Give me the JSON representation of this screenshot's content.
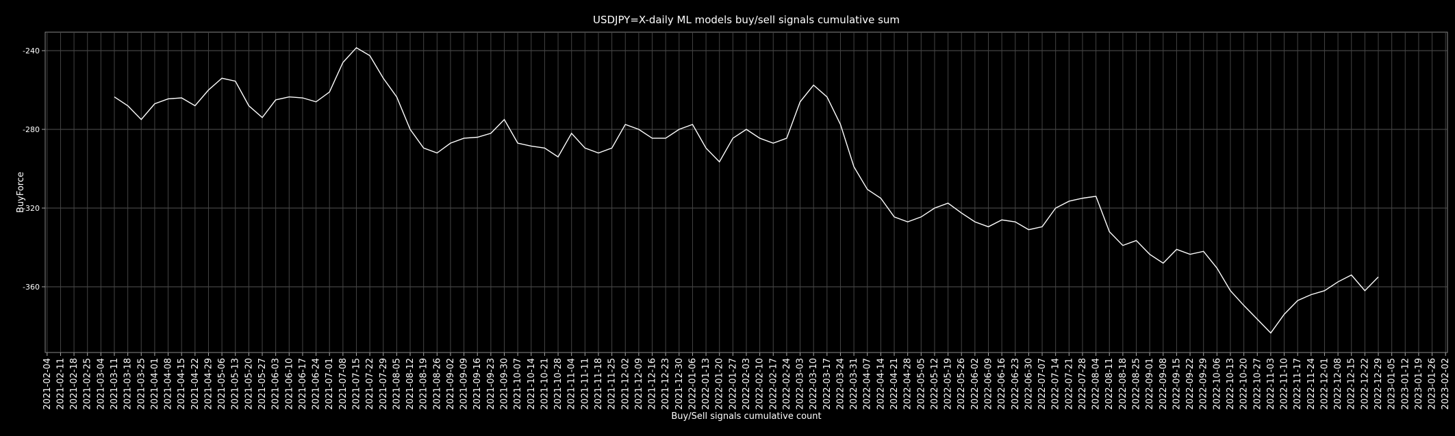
{
  "chart_data": {
    "type": "line",
    "title": "USDJPY=X-daily ML models buy/sell signals cumulative sum",
    "x_label": "Buy/Sell signals cumulative count",
    "y_label": "BuyForce",
    "color": "#ffffff",
    "grid": true,
    "x": [
      "2021-03-11",
      "2021-03-18",
      "2021-03-25",
      "2021-04-01",
      "2021-04-08",
      "2021-04-15",
      "2021-04-22",
      "2021-04-29",
      "2021-05-06",
      "2021-05-13",
      "2021-05-20",
      "2021-05-27",
      "2021-06-03",
      "2021-06-10",
      "2021-06-17",
      "2021-06-24",
      "2021-07-01",
      "2021-07-08",
      "2021-07-15",
      "2021-07-22",
      "2021-07-29",
      "2021-08-05",
      "2021-08-12",
      "2021-08-19",
      "2021-08-26",
      "2021-09-02",
      "2021-09-09",
      "2021-09-16",
      "2021-09-23",
      "2021-09-30",
      "2021-10-07",
      "2021-10-14",
      "2021-10-21",
      "2021-10-28",
      "2021-11-04",
      "2021-11-11",
      "2021-11-18",
      "2021-11-25",
      "2021-12-02",
      "2021-12-09",
      "2021-12-16",
      "2021-12-23",
      "2021-12-30",
      "2022-01-06",
      "2022-01-13",
      "2022-01-20",
      "2022-01-27",
      "2022-02-03",
      "2022-02-10",
      "2022-02-17",
      "2022-02-24",
      "2022-03-03",
      "2022-03-10",
      "2022-03-17",
      "2022-03-24",
      "2022-03-31",
      "2022-04-07",
      "2022-04-14",
      "2022-04-21",
      "2022-04-28",
      "2022-05-05",
      "2022-05-12",
      "2022-05-19",
      "2022-05-26",
      "2022-06-02",
      "2022-06-09",
      "2022-06-16",
      "2022-06-23",
      "2022-06-30",
      "2022-07-07",
      "2022-07-14",
      "2022-07-21",
      "2022-07-28",
      "2022-08-04",
      "2022-08-11",
      "2022-08-18",
      "2022-08-25",
      "2022-09-01",
      "2022-09-08",
      "2022-09-15",
      "2022-09-22",
      "2022-09-29",
      "2022-10-06",
      "2022-10-13",
      "2022-10-20",
      "2022-10-27",
      "2022-11-03",
      "2022-11-10",
      "2022-11-17",
      "2022-11-24",
      "2022-12-01",
      "2022-12-08",
      "2022-12-15",
      "2022-12-22",
      "2022-12-29"
    ],
    "values": [
      -263.5,
      -268,
      -275,
      -267,
      -264.5,
      -264,
      -268,
      -260,
      -254,
      -255.5,
      -268,
      -274,
      -265,
      -263.5,
      -264,
      -266,
      -261,
      -246,
      -238.5,
      -242.5,
      -254,
      -263.5,
      -280,
      -289.5,
      -292,
      -287,
      -284.5,
      -284,
      -282,
      -275,
      -287,
      -288.5,
      -289.5,
      -294,
      -282,
      -289.5,
      -292,
      -289.5,
      -277.5,
      -280,
      -284.5,
      -284.5,
      -280,
      -277.5,
      -289.5,
      -296.5,
      -284.5,
      -280,
      -284.5,
      -287,
      -284.5,
      -266,
      -257.5,
      -263.5,
      -277.5,
      -299,
      -310.5,
      -315,
      -324.5,
      -327,
      -324.5,
      -320,
      -317.5,
      -322.5,
      -327,
      -329.5,
      -326,
      -327,
      -331,
      -329.5,
      -320,
      -316.5,
      -315,
      -314,
      -332,
      -339,
      -336.5,
      -343.5,
      -348,
      -341,
      -343.5,
      -342,
      -350.5,
      -362,
      -369.5,
      -376.5,
      -383.5,
      -374,
      -367,
      -364,
      -362,
      -357.5,
      -354,
      -362,
      -355
    ],
    "xlim": [
      "2021-02-03",
      "2023-02-03"
    ],
    "xticks": [
      "2021-02-04",
      "2021-02-11",
      "2021-02-18",
      "2021-02-25",
      "2021-03-04",
      "2021-03-11",
      "2021-03-18",
      "2021-03-25",
      "2021-04-01",
      "2021-04-08",
      "2021-04-15",
      "2021-04-22",
      "2021-04-29",
      "2021-05-06",
      "2021-05-13",
      "2021-05-20",
      "2021-05-27",
      "2021-06-03",
      "2021-06-10",
      "2021-06-17",
      "2021-06-24",
      "2021-07-01",
      "2021-07-08",
      "2021-07-15",
      "2021-07-22",
      "2021-07-29",
      "2021-08-05",
      "2021-08-12",
      "2021-08-19",
      "2021-08-26",
      "2021-09-02",
      "2021-09-09",
      "2021-09-16",
      "2021-09-23",
      "2021-09-30",
      "2021-10-07",
      "2021-10-14",
      "2021-10-21",
      "2021-10-28",
      "2021-11-04",
      "2021-11-11",
      "2021-11-18",
      "2021-11-25",
      "2021-12-02",
      "2021-12-09",
      "2021-12-16",
      "2021-12-23",
      "2021-12-30",
      "2022-01-06",
      "2022-01-13",
      "2022-01-20",
      "2022-01-27",
      "2022-02-03",
      "2022-02-10",
      "2022-02-17",
      "2022-02-24",
      "2022-03-03",
      "2022-03-10",
      "2022-03-17",
      "2022-03-24",
      "2022-03-31",
      "2022-04-07",
      "2022-04-14",
      "2022-04-21",
      "2022-04-28",
      "2022-05-05",
      "2022-05-12",
      "2022-05-19",
      "2022-05-26",
      "2022-06-02",
      "2022-06-09",
      "2022-06-16",
      "2022-06-23",
      "2022-06-30",
      "2022-07-07",
      "2022-07-14",
      "2022-07-21",
      "2022-07-28",
      "2022-08-04",
      "2022-08-11",
      "2022-08-18",
      "2022-08-25",
      "2022-09-01",
      "2022-09-08",
      "2022-09-15",
      "2022-09-22",
      "2022-09-29",
      "2022-10-06",
      "2022-10-13",
      "2022-10-20",
      "2022-10-27",
      "2022-11-03",
      "2022-11-10",
      "2022-11-17",
      "2022-11-24",
      "2022-12-01",
      "2022-12-08",
      "2022-12-15",
      "2022-12-22",
      "2022-12-29",
      "2023-01-05",
      "2023-01-12",
      "2023-01-19",
      "2023-01-26",
      "2023-02-02"
    ],
    "ylim": [
      -393.4,
      -230.6
    ],
    "yticks": [
      -360,
      -320,
      -280,
      -240
    ]
  }
}
